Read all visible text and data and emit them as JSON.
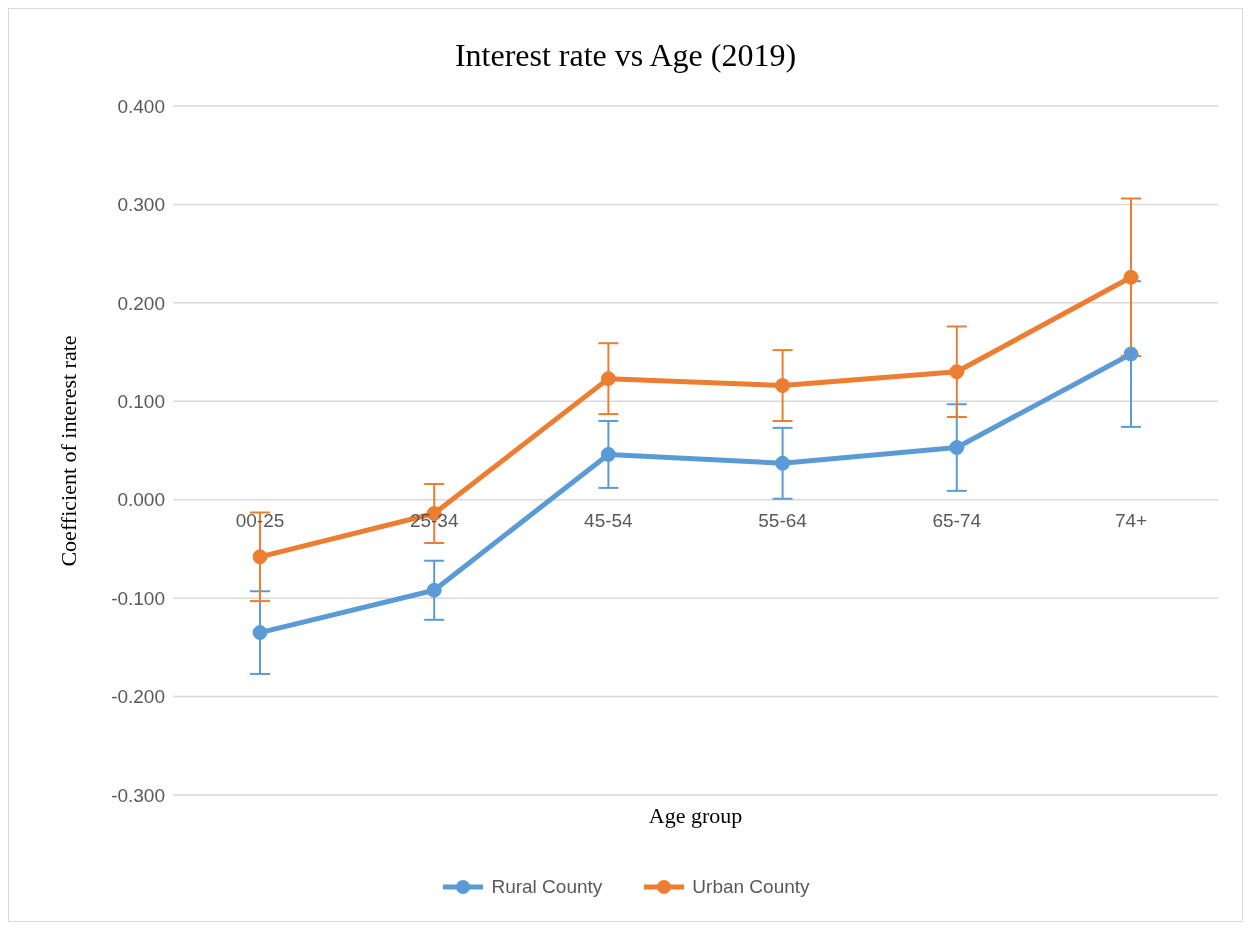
{
  "chart_data": {
    "type": "line",
    "title": "Interest rate vs Age (2019)",
    "xlabel": "Age group",
    "ylabel": "Coefficient of interest rate",
    "categories": [
      "00-25",
      "25-34",
      "45-54",
      "55-64",
      "65-74",
      "74+"
    ],
    "series": [
      {
        "name": "Rural County",
        "color": "#5b9bd5",
        "values": [
          -0.135,
          -0.092,
          0.046,
          0.037,
          0.053,
          0.148
        ],
        "errors": [
          0.042,
          0.03,
          0.034,
          0.036,
          0.044,
          0.074
        ]
      },
      {
        "name": "Urban County",
        "color": "#ed7d31",
        "values": [
          -0.058,
          -0.014,
          0.123,
          0.116,
          0.13,
          0.226
        ],
        "errors": [
          0.045,
          0.03,
          0.036,
          0.036,
          0.046,
          0.08
        ]
      }
    ],
    "ylim": [
      -0.3,
      0.4
    ],
    "yticks": [
      {
        "value": -0.3,
        "label": "-0.300"
      },
      {
        "value": -0.2,
        "label": "-0.200"
      },
      {
        "value": -0.1,
        "label": "-0.100"
      },
      {
        "value": 0,
        "label": "0.000"
      },
      {
        "value": 0.1,
        "label": "0.100"
      },
      {
        "value": 0.2,
        "label": "0.200"
      },
      {
        "value": 0.3,
        "label": "0.300"
      },
      {
        "value": 0.4,
        "label": "0.400"
      }
    ],
    "grid": "y",
    "legend": "bottom",
    "marker": "circle",
    "line_style": "solid"
  }
}
